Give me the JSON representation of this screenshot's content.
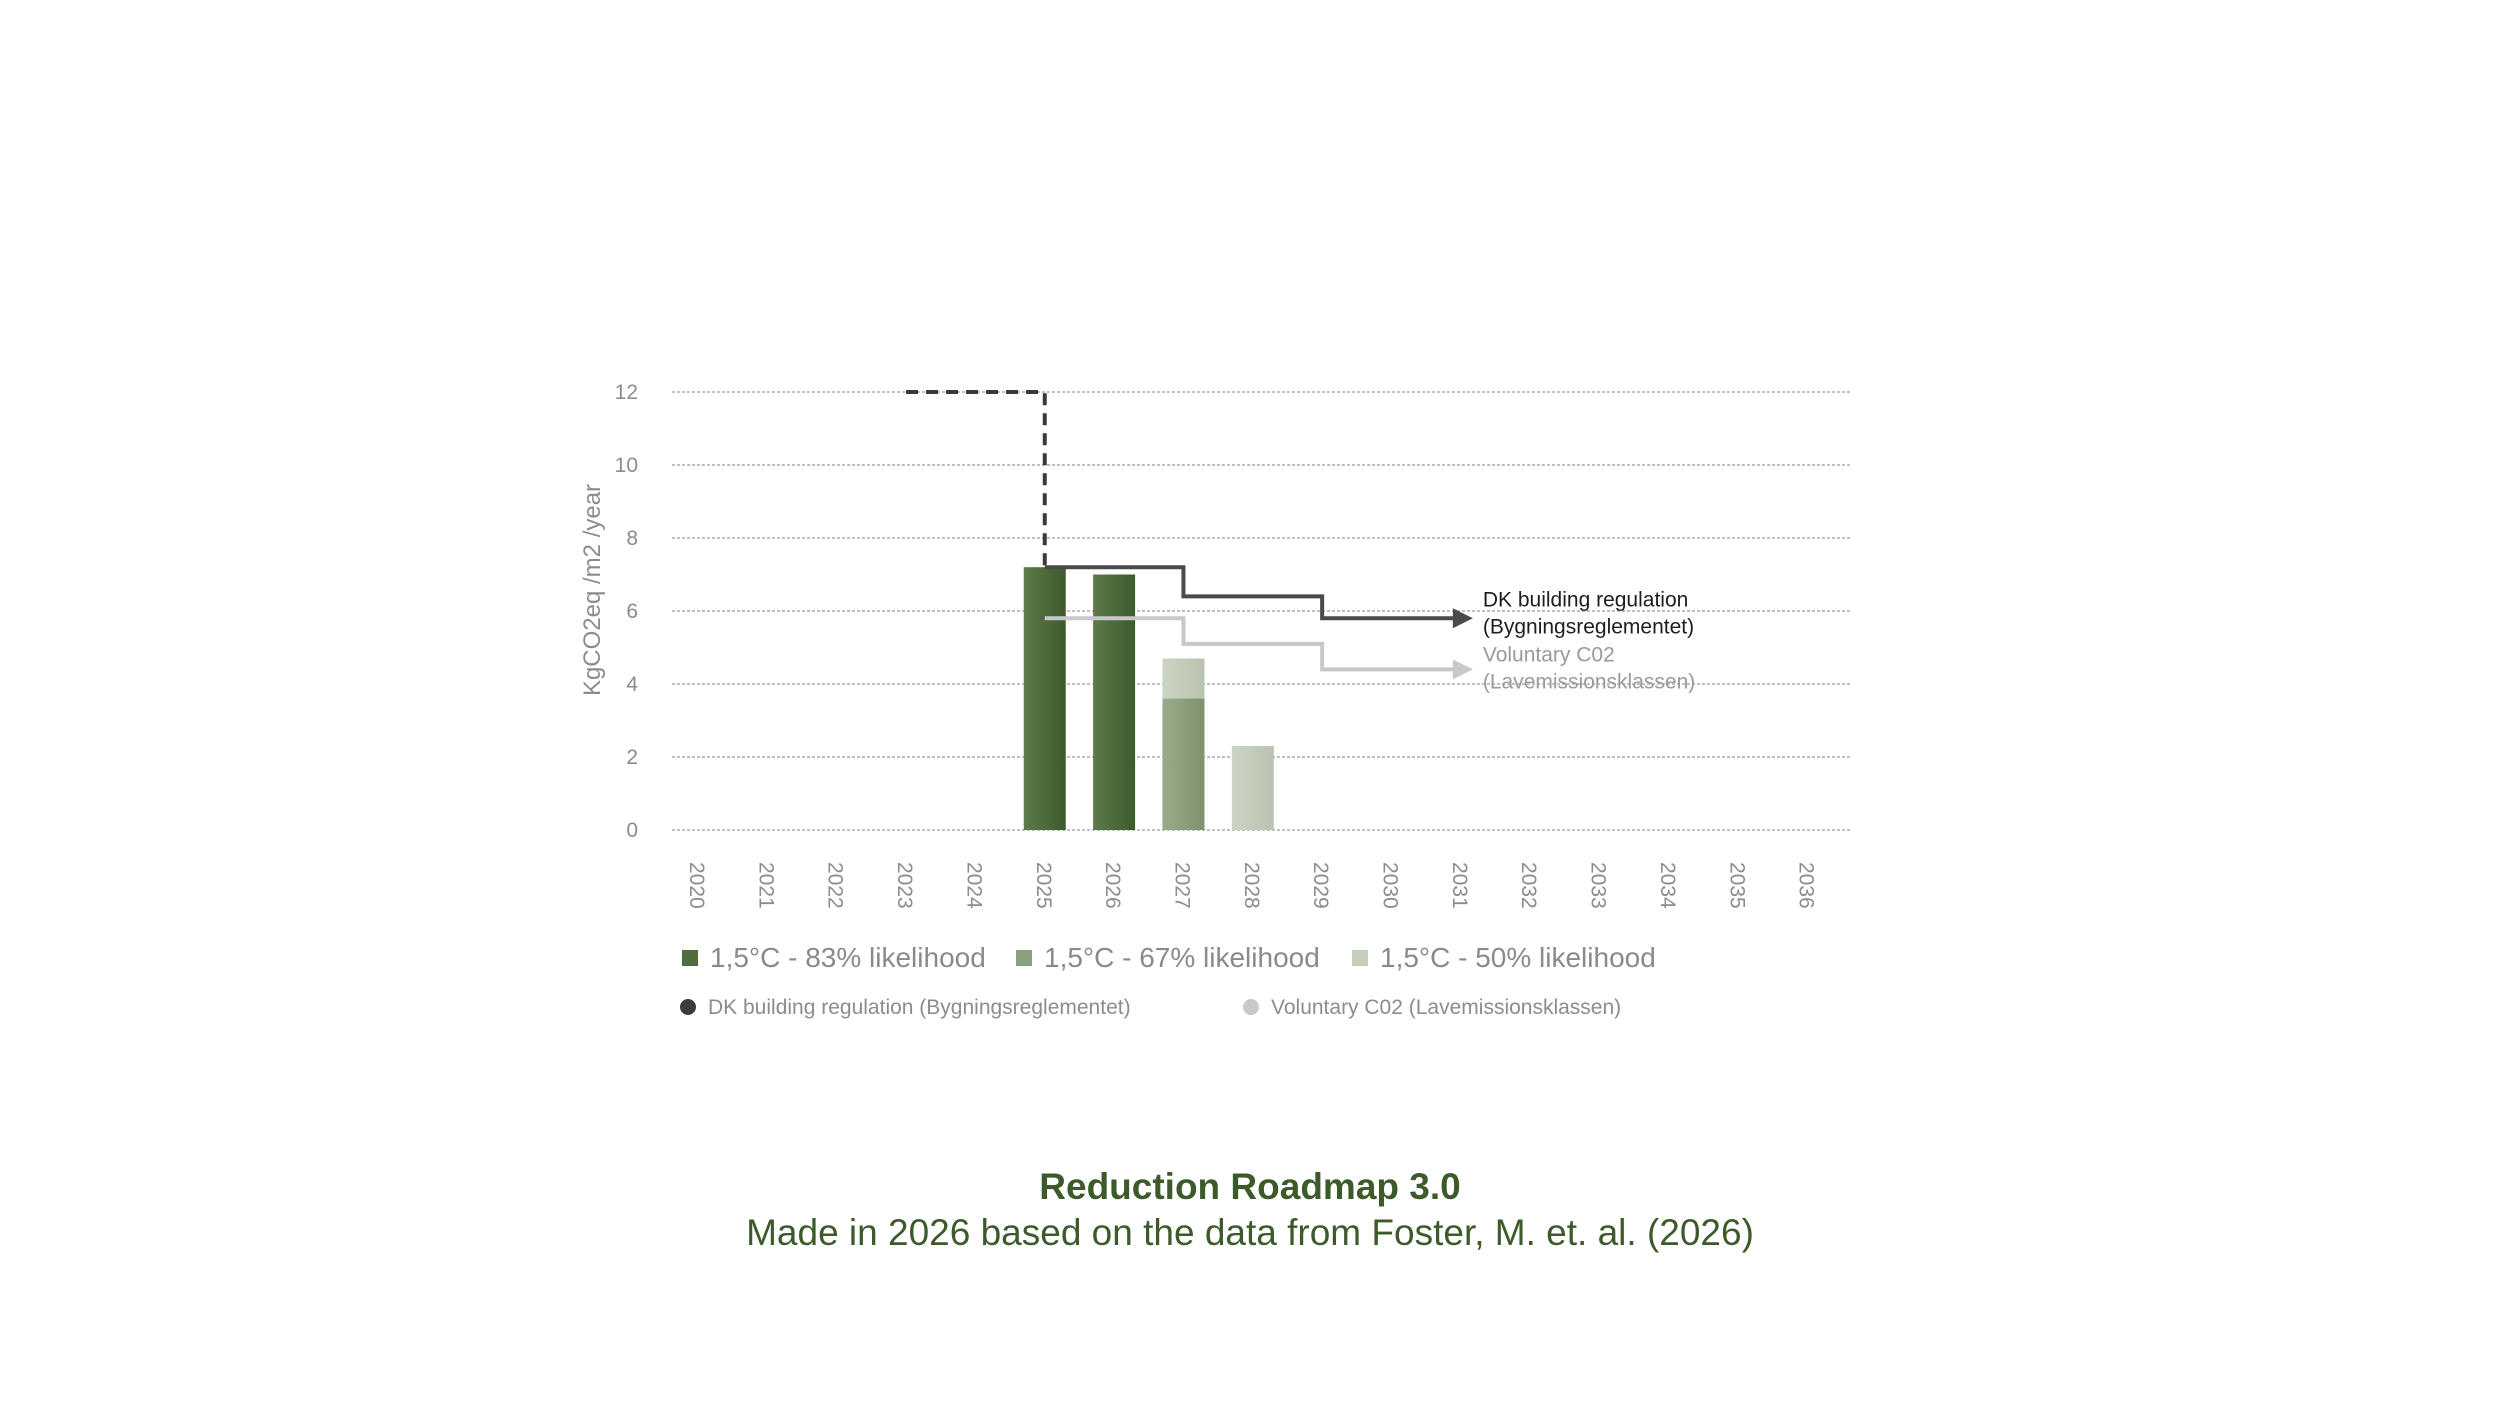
{
  "chart_data": {
    "type": "bar",
    "ylabel": "KgCO2eq /m2 /year",
    "ylim": [
      0,
      12
    ],
    "yticks": [
      "0",
      "2",
      "4",
      "6",
      "8",
      "10",
      "12"
    ],
    "categories": [
      "2020",
      "2021",
      "2022",
      "2023",
      "2024",
      "2025",
      "2026",
      "2027",
      "2028",
      "2029",
      "2030",
      "2031",
      "2032",
      "2033",
      "2034",
      "2035",
      "2036"
    ],
    "grid": true,
    "series": [
      {
        "name": "1,5°C - 83% likelihood",
        "color": "#4a6a36",
        "values": [
          null,
          null,
          null,
          null,
          null,
          7.2,
          7.0,
          null,
          null,
          null,
          null,
          null,
          null,
          null,
          null,
          null,
          null
        ]
      },
      {
        "name": "1,5°C - 67% likelihood",
        "color": "#8da07d",
        "values": [
          null,
          null,
          null,
          null,
          null,
          null,
          null,
          3.6,
          null,
          null,
          null,
          null,
          null,
          null,
          null,
          null,
          null
        ]
      },
      {
        "name": "1,5°C - 50% likelihood",
        "color": "#c5cfbd",
        "values": [
          null,
          null,
          null,
          null,
          null,
          null,
          null,
          4.7,
          2.3,
          null,
          null,
          null,
          null,
          null,
          null,
          null,
          null
        ]
      }
    ],
    "lines": [
      {
        "name": "DK building regulation (Bygningsreglementet)",
        "color": "#4a4a4a",
        "annotation": [
          "DK building regulation",
          "(Bygningsreglementet)"
        ],
        "dashed_segment": {
          "x_start": 2023,
          "x_end": 2025,
          "value_before": 12,
          "value_after": 7.2
        },
        "steps": [
          {
            "x_start": 2025,
            "x_end": 2027,
            "value": 7.2
          },
          {
            "x_start": 2027,
            "x_end": 2029,
            "value": 6.4
          },
          {
            "x_start": 2029,
            "x_end": 2031,
            "value": 5.8
          }
        ]
      },
      {
        "name": "Voluntary C02 (Lavemissionsklassen)",
        "color": "#c8c8c8",
        "annotation": [
          "Voluntary C02",
          "(Lavemissionsklassen)"
        ],
        "steps": [
          {
            "x_start": 2025,
            "x_end": 2027,
            "value": 5.8
          },
          {
            "x_start": 2027,
            "x_end": 2029,
            "value": 5.1
          },
          {
            "x_start": 2029,
            "x_end": 2031,
            "value": 4.4
          }
        ]
      }
    ],
    "legend_placement": "bottom-left"
  },
  "caption": {
    "title": "Reduction Roadmap 3.0",
    "subtitle": "Made in 2026 based on the data from Foster, M. et. al. (2026)"
  }
}
